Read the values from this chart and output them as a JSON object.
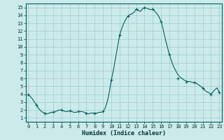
{
  "xlabel": "Humidex (Indice chaleur)",
  "bg_color": "#cceaea",
  "line_color": "#006060",
  "marker_color": "#006060",
  "grid_color": "#99cccc",
  "spine_color": "#006060",
  "x": [
    0,
    0.25,
    0.5,
    0.75,
    1,
    1.25,
    1.5,
    1.75,
    2,
    2.25,
    2.5,
    2.75,
    3,
    3.25,
    3.5,
    3.75,
    4,
    4.25,
    4.5,
    4.75,
    5,
    5.25,
    5.5,
    5.75,
    6,
    6.25,
    6.5,
    6.75,
    7,
    7.25,
    7.5,
    7.75,
    8,
    8.25,
    8.5,
    8.75,
    9,
    9.25,
    9.5,
    9.75,
    10,
    10.25,
    10.5,
    10.75,
    11,
    11.25,
    11.5,
    11.75,
    12,
    12.25,
    12.5,
    12.75,
    13,
    13.25,
    13.5,
    13.75,
    14,
    14.25,
    14.5,
    14.75,
    15,
    15.25,
    15.5,
    15.75,
    16,
    16.25,
    16.5,
    16.75,
    17,
    17.25,
    17.5,
    17.75,
    18,
    18.25,
    18.5,
    18.75,
    19,
    19.25,
    19.5,
    19.75,
    20,
    20.25,
    20.5,
    20.75,
    21,
    21.25,
    21.5,
    21.75,
    22,
    22.25,
    22.5,
    22.75,
    23
  ],
  "y": [
    4.0,
    3.7,
    3.4,
    3.0,
    2.6,
    2.2,
    1.9,
    1.7,
    1.6,
    1.5,
    1.6,
    1.7,
    1.7,
    1.8,
    1.9,
    2.0,
    2.0,
    1.9,
    1.8,
    1.8,
    1.9,
    1.8,
    1.7,
    1.7,
    1.8,
    1.8,
    1.8,
    1.7,
    1.6,
    1.5,
    1.6,
    1.6,
    1.6,
    1.6,
    1.7,
    1.7,
    1.8,
    2.2,
    3.0,
    4.2,
    5.8,
    7.0,
    8.5,
    10.0,
    11.5,
    12.3,
    13.0,
    13.5,
    13.9,
    14.1,
    14.2,
    14.4,
    14.8,
    14.6,
    14.5,
    14.8,
    15.0,
    14.9,
    14.8,
    14.7,
    14.8,
    14.5,
    14.2,
    13.8,
    13.2,
    12.2,
    11.0,
    10.0,
    9.0,
    8.2,
    7.5,
    7.0,
    6.5,
    6.2,
    6.0,
    5.8,
    5.7,
    5.6,
    5.6,
    5.5,
    5.5,
    5.4,
    5.2,
    5.0,
    4.8,
    4.5,
    4.3,
    4.2,
    4.0,
    4.3,
    4.6,
    4.8,
    4.2
  ],
  "marker_x": [
    0,
    1,
    2,
    3,
    4,
    5,
    6,
    7,
    8,
    9,
    10,
    11,
    12,
    13,
    14,
    15,
    16,
    17,
    18,
    19,
    20,
    21,
    22,
    23
  ],
  "marker_y": [
    4.0,
    2.6,
    1.6,
    1.7,
    2.0,
    1.9,
    1.8,
    1.6,
    1.6,
    1.8,
    5.8,
    11.5,
    13.9,
    14.8,
    15.0,
    14.8,
    13.2,
    9.0,
    6.0,
    5.6,
    5.5,
    4.8,
    4.0,
    4.2
  ],
  "xlim": [
    -0.3,
    23.3
  ],
  "ylim": [
    0.5,
    15.5
  ],
  "xticks": [
    0,
    1,
    2,
    3,
    4,
    5,
    6,
    7,
    8,
    9,
    10,
    11,
    12,
    13,
    14,
    15,
    16,
    17,
    18,
    19,
    20,
    21,
    22,
    23
  ],
  "yticks": [
    1,
    2,
    3,
    4,
    5,
    6,
    7,
    8,
    9,
    10,
    11,
    12,
    13,
    14,
    15
  ],
  "tick_fontsize": 5.0,
  "xlabel_fontsize": 6.0
}
